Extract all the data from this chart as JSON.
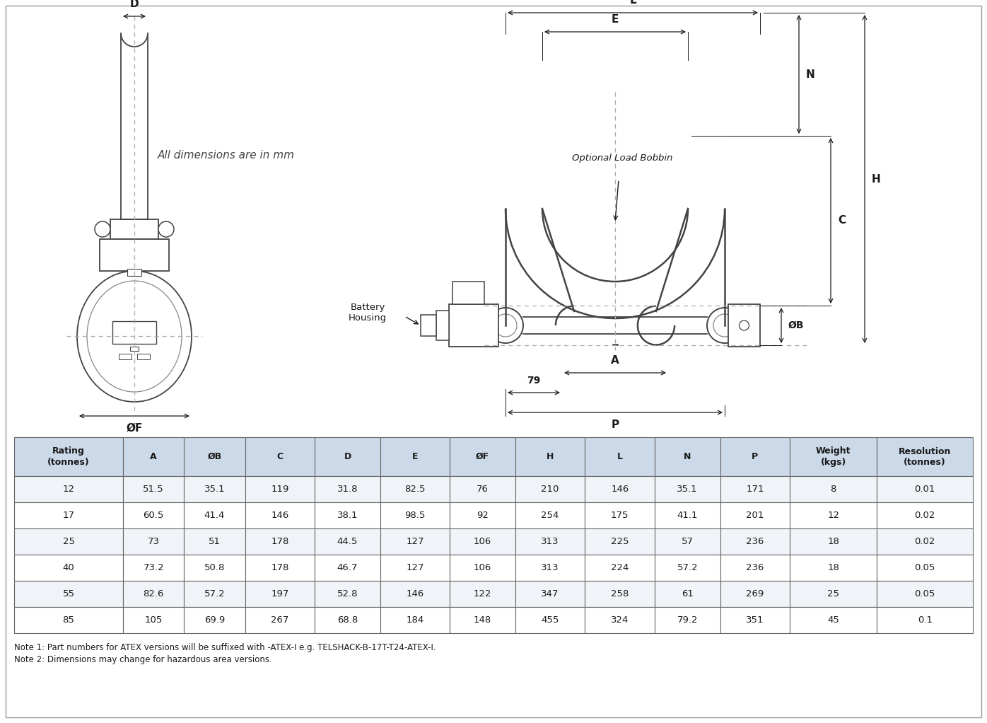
{
  "table_headers": [
    "Rating\n(tonnes)",
    "A",
    "ØB",
    "C",
    "D",
    "E",
    "ØF",
    "H",
    "L",
    "N",
    "P",
    "Weight\n(kgs)",
    "Resolution\n(tonnes)"
  ],
  "table_data": [
    [
      "12",
      "51.5",
      "35.1",
      "119",
      "31.8",
      "82.5",
      "76",
      "210",
      "146",
      "35.1",
      "171",
      "8",
      "0.01"
    ],
    [
      "17",
      "60.5",
      "41.4",
      "146",
      "38.1",
      "98.5",
      "92",
      "254",
      "175",
      "41.1",
      "201",
      "12",
      "0.02"
    ],
    [
      "25",
      "73",
      "51",
      "178",
      "44.5",
      "127",
      "106",
      "313",
      "225",
      "57",
      "236",
      "18",
      "0.02"
    ],
    [
      "40",
      "73.2",
      "50.8",
      "178",
      "46.7",
      "127",
      "106",
      "313",
      "224",
      "57.2",
      "236",
      "18",
      "0.05"
    ],
    [
      "55",
      "82.6",
      "57.2",
      "197",
      "52.8",
      "146",
      "122",
      "347",
      "258",
      "61",
      "269",
      "25",
      "0.05"
    ],
    [
      "85",
      "105",
      "69.9",
      "267",
      "68.8",
      "184",
      "148",
      "455",
      "324",
      "79.2",
      "351",
      "45",
      "0.1"
    ]
  ],
  "header_bg": "#ccd9e8",
  "row_bg_even": "#f0f4f8",
  "row_bg_odd": "#ffffff",
  "border_color": "#666666",
  "text_color": "#1a1a1a",
  "dim_color": "#1a1a1a",
  "line_color": "#444444",
  "note1": "Note 1: Part numbers for ATEX versions will be suffixed with -ATEX-I e.g. TELSHACK-B-17T-T24-ATEX-I.",
  "note2": "Note 2: Dimensions may change for hazardous area versions.",
  "all_dim_text": "All dimensions are in mm",
  "optional_bobbin": "Optional Load Bobbin",
  "battery_housing": "Battery\nHousing",
  "dim_79": "79",
  "col_widths_rel": [
    1.25,
    0.7,
    0.7,
    0.8,
    0.75,
    0.8,
    0.75,
    0.8,
    0.8,
    0.75,
    0.8,
    1.0,
    1.1
  ]
}
